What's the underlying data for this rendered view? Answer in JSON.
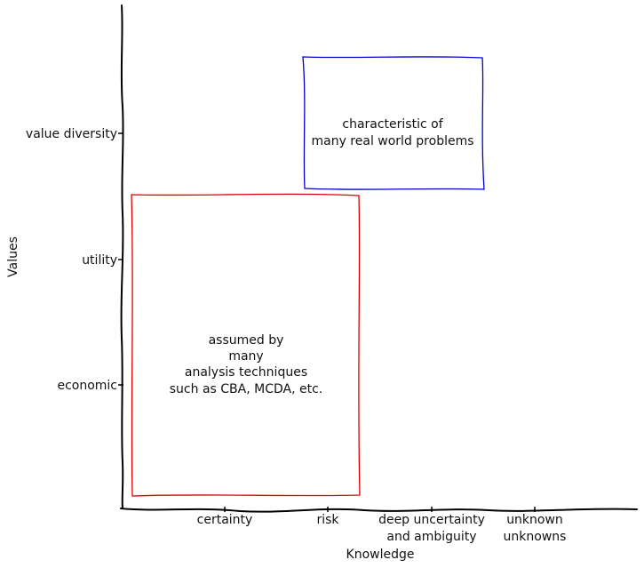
{
  "y_axis": {
    "title": "Values",
    "ticks": [
      "economic",
      "utility",
      "value diversity"
    ]
  },
  "x_axis": {
    "title": "Knowledge",
    "ticks": [
      [
        "certainty"
      ],
      [
        "risk"
      ],
      [
        "deep uncertainty",
        "and ambiguity"
      ],
      [
        "unknown",
        "unknowns"
      ]
    ]
  },
  "boxes": {
    "blue": {
      "color": "#0000cc",
      "lines": [
        "characteristic of",
        "many real world problems"
      ]
    },
    "red": {
      "color": "#dd0000",
      "lines": [
        "assumed by",
        "many",
        "analysis techniques",
        "such as CBA, MCDA, etc."
      ]
    }
  }
}
